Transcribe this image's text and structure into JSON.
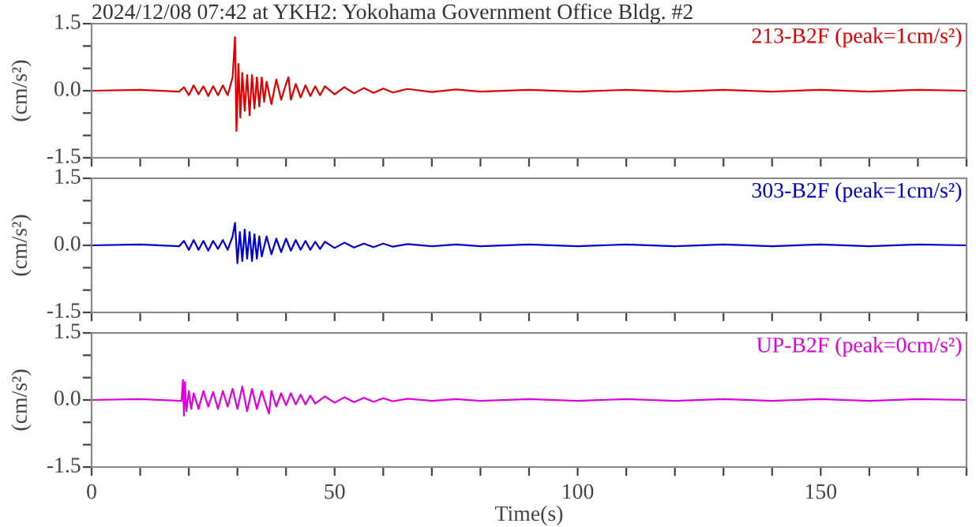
{
  "chart_data": [
    {
      "type": "line",
      "title": "2024/12/08 07:42 at YKH2: Yokohama Government Office Bldg. #2",
      "ylabel": "(cm/s²)",
      "tick_labels": "y",
      "grid": false,
      "legend": false,
      "x": [
        0,
        10,
        18,
        19,
        20,
        21,
        22,
        23,
        24,
        25,
        26,
        27,
        28,
        29,
        29.5,
        29.8,
        30.2,
        30.6,
        31,
        31.5,
        32,
        32.5,
        33,
        33.5,
        34,
        34.5,
        35,
        35.5,
        36,
        37,
        38,
        39,
        40,
        40.5,
        41,
        42,
        43,
        44,
        45,
        46,
        47,
        48,
        50,
        52,
        54,
        56,
        58,
        60,
        62,
        65,
        70,
        75,
        80,
        90,
        100,
        110,
        120,
        130,
        140,
        150,
        160,
        170,
        180
      ],
      "series": [
        {
          "name": "213-B2F (peak=1cm/s²)",
          "color": "#dd0000",
          "values": [
            0,
            0.02,
            -0.02,
            0.08,
            -0.1,
            0.12,
            -0.08,
            0.1,
            -0.12,
            0.1,
            -0.1,
            0.12,
            -0.1,
            0.3,
            1.2,
            -0.9,
            0.6,
            -0.6,
            0.4,
            -0.45,
            0.35,
            -0.55,
            0.35,
            -0.4,
            0.3,
            -0.35,
            0.3,
            -0.25,
            0.2,
            -0.3,
            0.25,
            -0.2,
            0.15,
            0.3,
            -0.2,
            0.15,
            -0.15,
            0.12,
            -0.12,
            0.1,
            -0.1,
            0.1,
            -0.08,
            0.08,
            -0.06,
            0.06,
            -0.05,
            0.05,
            -0.04,
            0.04,
            -0.03,
            0.03,
            -0.02,
            0.02,
            -0.02,
            0.02,
            -0.02,
            0.02,
            -0.02,
            0.02,
            -0.02,
            0.02,
            0
          ]
        }
      ],
      "xlim": [
        0,
        180
      ],
      "xticks": [
        0,
        {
          "value": 10,
          "label": null
        },
        {
          "value": 20,
          "label": null
        },
        {
          "value": 30,
          "label": null
        },
        {
          "value": 40,
          "label": null
        },
        50,
        {
          "value": 60,
          "label": null
        },
        {
          "value": 70,
          "label": null
        },
        {
          "value": 80,
          "label": null
        },
        {
          "value": 90,
          "label": null
        },
        100,
        {
          "value": 110,
          "label": null
        },
        {
          "value": 120,
          "label": null
        },
        {
          "value": 130,
          "label": null
        },
        {
          "value": 140,
          "label": null
        },
        150,
        {
          "value": 160,
          "label": null
        },
        {
          "value": 170,
          "label": null
        },
        {
          "value": 180,
          "label": null
        }
      ],
      "ylim": [
        -1.5,
        1.5
      ],
      "yticks": [
        {
          "value": -1.5,
          "label": "-1.5"
        },
        {
          "value": -1.0,
          "label": null
        },
        {
          "value": -0.5,
          "label": null
        },
        {
          "value": 0,
          "label": "0.0"
        },
        {
          "value": 0.5,
          "label": null
        },
        {
          "value": 1.0,
          "label": null
        },
        {
          "value": 1.5,
          "label": "1.5"
        }
      ]
    },
    {
      "type": "line",
      "ylabel": "(cm/s²)",
      "tick_labels": "y",
      "grid": false,
      "legend": false,
      "x": [
        0,
        10,
        18,
        19,
        20,
        21,
        22,
        23,
        24,
        25,
        26,
        27,
        28,
        29,
        29.5,
        30,
        30.5,
        31,
        31.5,
        32,
        32.5,
        33,
        33.5,
        34,
        34.5,
        35,
        36,
        37,
        38,
        39,
        40,
        41,
        42,
        43,
        44,
        45,
        46,
        47,
        48,
        50,
        52,
        54,
        56,
        58,
        60,
        62,
        65,
        70,
        75,
        80,
        90,
        100,
        110,
        120,
        130,
        140,
        150,
        160,
        170,
        180
      ],
      "series": [
        {
          "name": "303-B2F (peak=1cm/s²)",
          "color": "#0000cc",
          "values": [
            0,
            0.02,
            -0.02,
            0.1,
            -0.1,
            0.12,
            -0.1,
            0.1,
            -0.12,
            0.1,
            -0.08,
            0.12,
            -0.1,
            0.2,
            0.5,
            -0.4,
            0.3,
            -0.35,
            0.35,
            -0.3,
            0.3,
            -0.35,
            0.25,
            -0.3,
            0.2,
            -0.25,
            0.2,
            -0.2,
            0.15,
            -0.15,
            0.15,
            -0.12,
            0.12,
            -0.1,
            0.1,
            -0.1,
            0.08,
            -0.08,
            0.08,
            -0.06,
            0.06,
            -0.05,
            0.04,
            -0.04,
            0.04,
            -0.03,
            0.03,
            -0.02,
            0.02,
            -0.02,
            0.02,
            -0.02,
            0.02,
            -0.02,
            0.02,
            -0.02,
            0.02,
            -0.02,
            0.02,
            0
          ]
        }
      ],
      "xlim": [
        0,
        180
      ],
      "xticks": [
        0,
        {
          "value": 10,
          "label": null
        },
        {
          "value": 20,
          "label": null
        },
        {
          "value": 30,
          "label": null
        },
        {
          "value": 40,
          "label": null
        },
        50,
        {
          "value": 60,
          "label": null
        },
        {
          "value": 70,
          "label": null
        },
        {
          "value": 80,
          "label": null
        },
        {
          "value": 90,
          "label": null
        },
        100,
        {
          "value": 110,
          "label": null
        },
        {
          "value": 120,
          "label": null
        },
        {
          "value": 130,
          "label": null
        },
        {
          "value": 140,
          "label": null
        },
        150,
        {
          "value": 160,
          "label": null
        },
        {
          "value": 170,
          "label": null
        },
        {
          "value": 180,
          "label": null
        }
      ],
      "ylim": [
        -1.5,
        1.5
      ],
      "yticks": [
        {
          "value": -1.5,
          "label": "-1.5"
        },
        {
          "value": -1.0,
          "label": null
        },
        {
          "value": -0.5,
          "label": null
        },
        {
          "value": 0,
          "label": "0.0"
        },
        {
          "value": 0.5,
          "label": null
        },
        {
          "value": 1.0,
          "label": null
        },
        {
          "value": 1.5,
          "label": "1.5"
        }
      ]
    },
    {
      "type": "line",
      "ylabel": "(cm/s²)",
      "xlabel": "Time(s)",
      "grid": false,
      "legend": false,
      "x": [
        0,
        10,
        18.5,
        18.8,
        19,
        19.2,
        19.5,
        20,
        20.5,
        21,
        22,
        23,
        24,
        25,
        26,
        27,
        28,
        29,
        30,
        31,
        32,
        33,
        34,
        35,
        36,
        36.5,
        37,
        38,
        39,
        40,
        41,
        42,
        43,
        44,
        45,
        46,
        48,
        50,
        52,
        54,
        56,
        58,
        60,
        62,
        65,
        70,
        75,
        80,
        90,
        100,
        110,
        120,
        130,
        140,
        150,
        160,
        170,
        180
      ],
      "series": [
        {
          "name": "UP-B2F (peak=0cm/s²)",
          "color": "#dd00dd",
          "values": [
            0,
            0.02,
            -0.02,
            0.45,
            -0.35,
            0.4,
            -0.25,
            0.2,
            -0.2,
            0.15,
            -0.2,
            0.2,
            -0.15,
            0.18,
            -0.2,
            0.2,
            -0.15,
            0.25,
            -0.2,
            0.3,
            -0.25,
            0.25,
            -0.2,
            0.2,
            -0.15,
            -0.3,
            0.2,
            -0.15,
            0.15,
            -0.12,
            0.15,
            -0.1,
            0.12,
            -0.1,
            0.1,
            -0.08,
            0.08,
            -0.06,
            0.06,
            -0.05,
            0.05,
            -0.04,
            0.04,
            -0.03,
            0.03,
            -0.02,
            0.02,
            -0.02,
            0.02,
            -0.02,
            0.02,
            -0.02,
            0.02,
            -0.02,
            0.02,
            -0.02,
            0.02,
            0
          ]
        }
      ],
      "xlim": [
        0,
        180
      ],
      "xticks": [
        0,
        {
          "value": 10,
          "label": null
        },
        {
          "value": 20,
          "label": null
        },
        {
          "value": 30,
          "label": null
        },
        {
          "value": 40,
          "label": null
        },
        50,
        {
          "value": 60,
          "label": null
        },
        {
          "value": 70,
          "label": null
        },
        {
          "value": 80,
          "label": null
        },
        {
          "value": 90,
          "label": null
        },
        100,
        {
          "value": 110,
          "label": null
        },
        {
          "value": 120,
          "label": null
        },
        {
          "value": 130,
          "label": null
        },
        {
          "value": 140,
          "label": null
        },
        150,
        {
          "value": 160,
          "label": null
        },
        {
          "value": 170,
          "label": null
        },
        {
          "value": 180,
          "label": null
        }
      ],
      "ylim": [
        -1.5,
        1.5
      ],
      "yticks": [
        {
          "value": -1.5,
          "label": "-1.5"
        },
        {
          "value": -1.0,
          "label": null
        },
        {
          "value": -0.5,
          "label": null
        },
        {
          "value": 0,
          "label": "0.0"
        },
        {
          "value": 0.5,
          "label": null
        },
        {
          "value": 1.0,
          "label": null
        },
        {
          "value": 1.5,
          "label": "1.5"
        }
      ]
    }
  ]
}
